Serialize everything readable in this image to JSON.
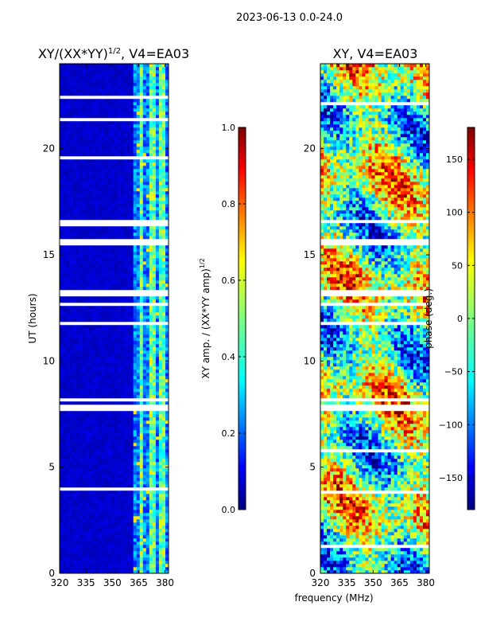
{
  "suptitle": "2023-06-13 0.0-24.0",
  "colors": {
    "jet": [
      "#00007f",
      "#0000ff",
      "#007fff",
      "#00ffff",
      "#7fff7f",
      "#ffff00",
      "#ff7f00",
      "#ff0000",
      "#7f0000"
    ],
    "blank_row": "#ffffff"
  },
  "chart_data": [
    {
      "type": "heatmap",
      "title_main": "XY/(XX*YY)",
      "title_sup": "1/2",
      "title_rest": ", V4=EA03",
      "xlabel": "",
      "ylabel": "UT (hours)",
      "xlim": [
        320,
        382
      ],
      "ylim": [
        0,
        24
      ],
      "xticks": [
        "320",
        "335",
        "350",
        "365",
        "380"
      ],
      "yticks": [
        "0",
        "5",
        "10",
        "15",
        "20"
      ],
      "xtick_values": [
        320,
        335,
        350,
        365,
        380
      ],
      "ytick_values": [
        0,
        5,
        10,
        15,
        20
      ],
      "colorbar": {
        "label_main": "XY amp. / (XX*YY amp)",
        "label_sup": "1/2",
        "ticks": [
          "0.0",
          "0.2",
          "0.4",
          "0.6",
          "0.8",
          "1.0"
        ],
        "tick_values": [
          0.0,
          0.2,
          0.4,
          0.6,
          0.8,
          1.0
        ],
        "range": [
          0.0,
          1.0
        ]
      },
      "blank_bands_hours": [
        [
          7.6,
          8.0
        ],
        [
          8.1,
          8.3
        ],
        [
          11.7,
          11.9
        ],
        [
          12.6,
          12.8
        ],
        [
          13.0,
          13.3
        ],
        [
          15.5,
          15.7
        ],
        [
          16.5,
          16.7
        ]
      ],
      "pattern": "near-zero below ~362 MHz; bright vertical channels 0.3-0.6 between 362 and 382 MHz"
    },
    {
      "type": "heatmap",
      "title_main": "XY, V4=EA03",
      "xlabel": "frequency (MHz)",
      "ylabel": "",
      "xlim": [
        320,
        382
      ],
      "ylim": [
        0,
        24
      ],
      "xticks": [
        "320",
        "335",
        "350",
        "365",
        "380"
      ],
      "yticks": [
        "0",
        "5",
        "10",
        "15",
        "20"
      ],
      "xtick_values": [
        320,
        335,
        350,
        365,
        380
      ],
      "ytick_values": [
        0,
        5,
        10,
        15,
        20
      ],
      "colorbar": {
        "label_main": "phase (deg.)",
        "ticks": [
          "−150",
          "−100",
          "−50",
          "0",
          "50",
          "100",
          "150"
        ],
        "tick_values": [
          -150,
          -100,
          -50,
          0,
          50,
          100,
          150
        ],
        "range": [
          -180,
          180
        ]
      },
      "blank_bands_hours": [
        [
          7.6,
          8.0
        ],
        [
          8.1,
          8.3
        ],
        [
          11.7,
          11.9
        ],
        [
          12.6,
          12.8
        ],
        [
          13.0,
          13.3
        ],
        [
          15.5,
          15.7
        ],
        [
          16.5,
          16.7
        ]
      ],
      "pattern": "noisy phase from -180 to 180 deg across all frequencies"
    }
  ]
}
